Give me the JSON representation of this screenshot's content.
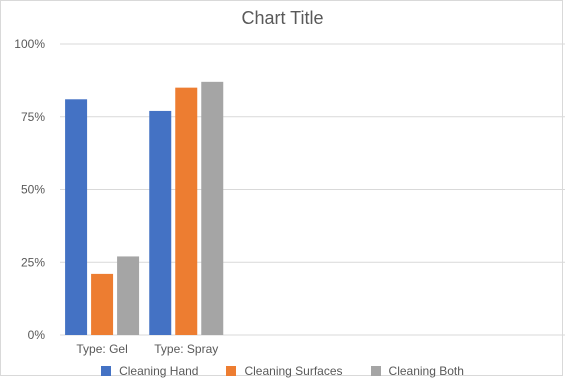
{
  "chart_data": {
    "type": "bar",
    "title": "Chart Title",
    "xlabel": "",
    "ylabel": "",
    "categories": [
      "Type: Gel",
      "Type: Spray",
      "",
      "",
      "",
      ""
    ],
    "series": [
      {
        "name": "Cleaning Hand",
        "color": "#4472c4",
        "values": [
          81,
          77,
          null,
          null,
          null,
          null
        ]
      },
      {
        "name": "Cleaning Surfaces",
        "color": "#ed7d31",
        "values": [
          21,
          85,
          null,
          null,
          null,
          null
        ]
      },
      {
        "name": "Cleaning Both",
        "color": "#a5a5a5",
        "values": [
          27,
          87,
          null,
          null,
          null,
          null
        ]
      }
    ],
    "ylim": [
      0,
      100
    ],
    "yticks": [
      0,
      25,
      50,
      75,
      100
    ],
    "ytick_labels": [
      "0%",
      "25%",
      "50%",
      "75%",
      "100%"
    ],
    "grid": true,
    "legend": "bottom"
  }
}
